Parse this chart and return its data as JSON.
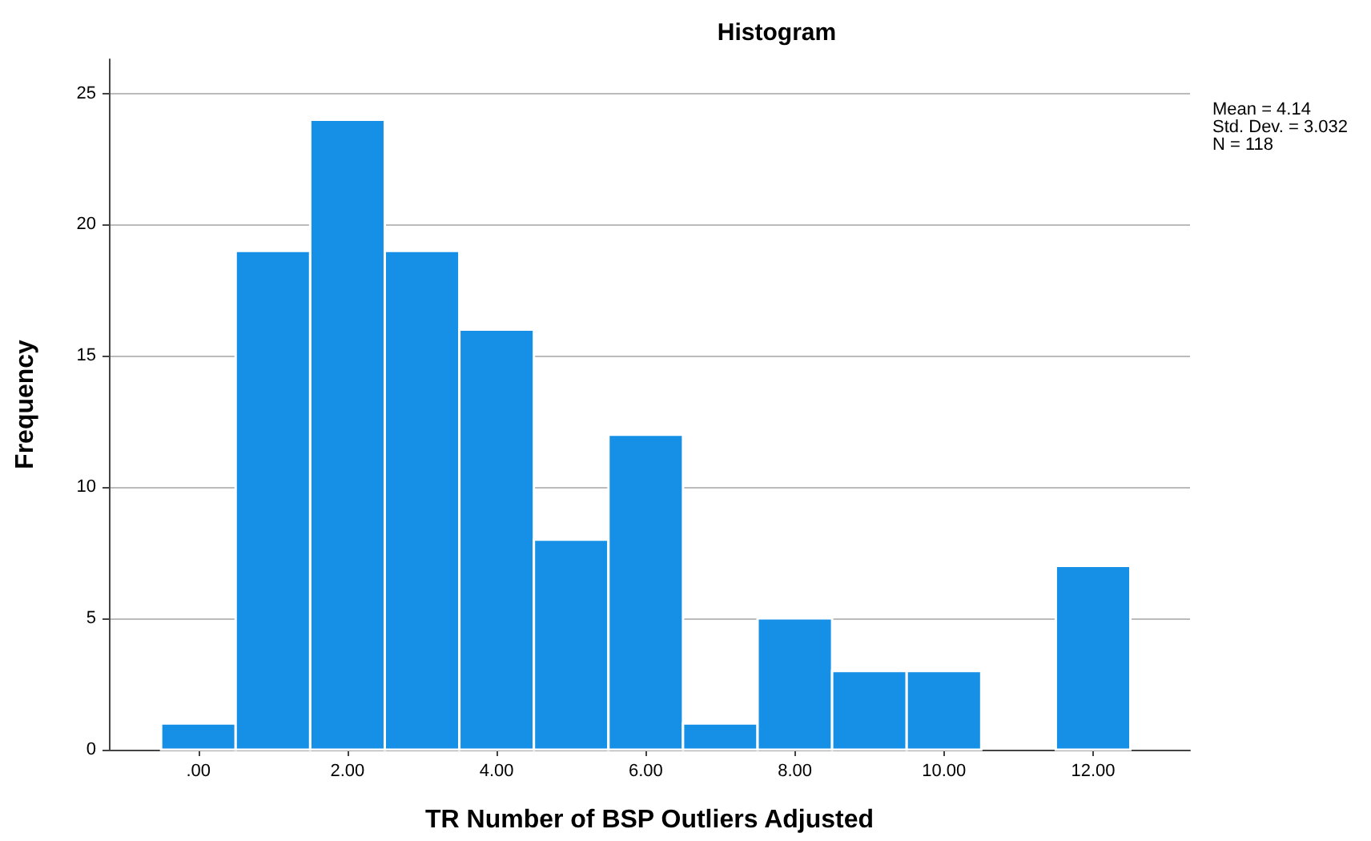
{
  "chart_data": {
    "type": "histogram",
    "title": "Histogram",
    "xlabel": "TR Number of BSP Outliers Adjusted",
    "ylabel": "Frequency",
    "bins": [
      -0.5,
      0.5,
      1.5,
      2.5,
      3.5,
      4.5,
      5.5,
      6.5,
      7.5,
      8.5,
      9.5,
      10.5,
      11.5,
      12.5
    ],
    "values": [
      1,
      19,
      24,
      19,
      16,
      8,
      12,
      1,
      5,
      3,
      3,
      0,
      7
    ],
    "color": "#1590e6",
    "xlim": [
      -1.2,
      13.3
    ],
    "xticks": [
      {
        "value": 0,
        "label": ".00"
      },
      {
        "value": 2,
        "label": "2.00"
      },
      {
        "value": 4,
        "label": "4.00"
      },
      {
        "value": 6,
        "label": "6.00"
      },
      {
        "value": 8,
        "label": "8.00"
      },
      {
        "value": 10,
        "label": "10.00"
      },
      {
        "value": 12,
        "label": "12.00"
      }
    ],
    "ylim": [
      0,
      26.3
    ],
    "yticks": [
      0,
      5,
      10,
      15,
      20,
      25
    ],
    "grid": "y",
    "annotations": [
      "Mean = 4.14",
      "Std. Dev. = 3.032",
      "N = 118"
    ]
  }
}
